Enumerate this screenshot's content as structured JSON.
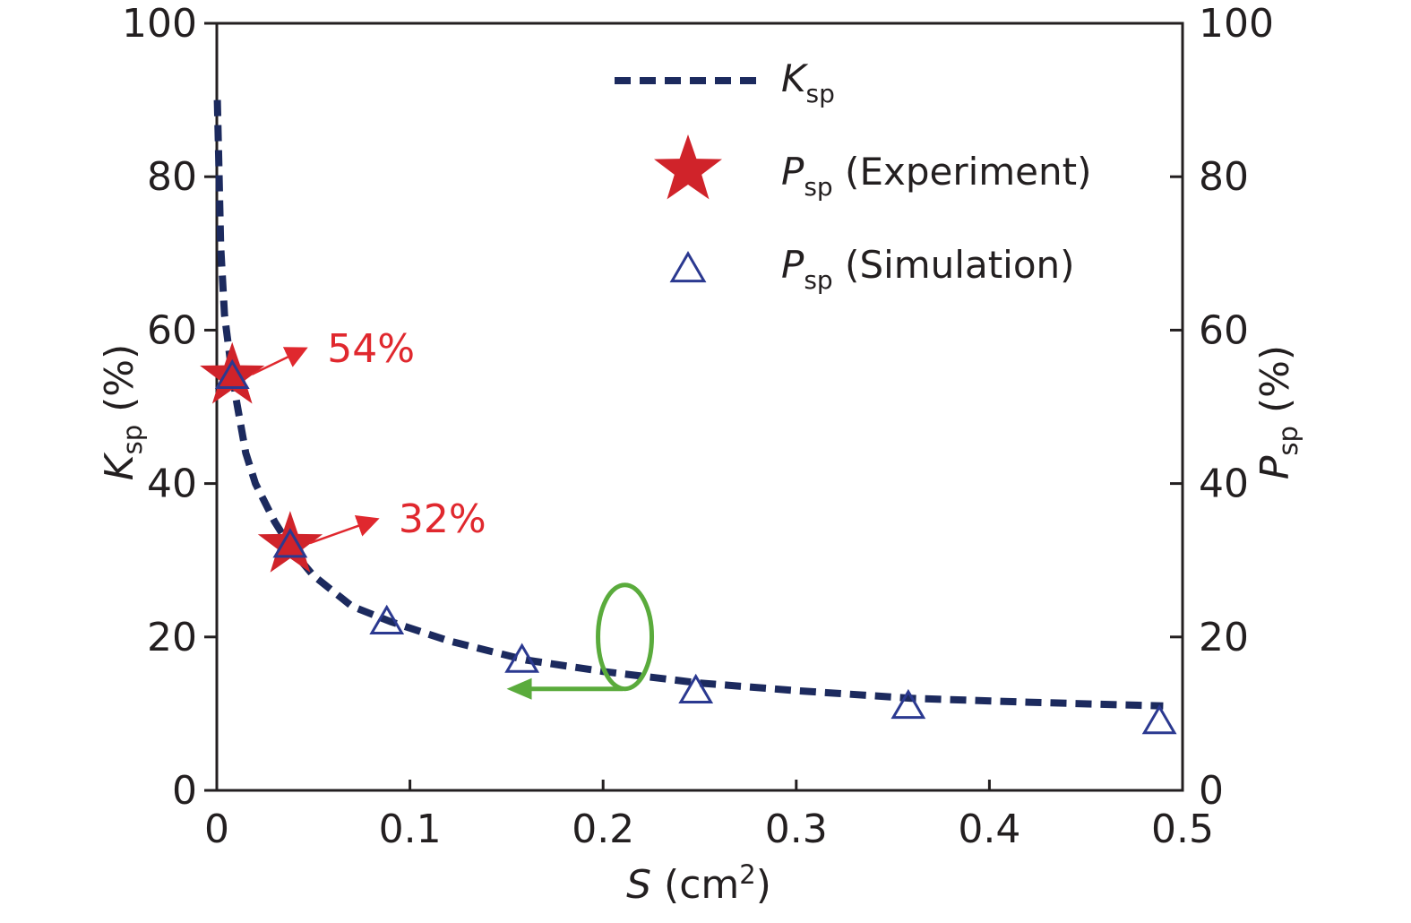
{
  "chart_data": {
    "type": "line",
    "title": "",
    "xlabel": {
      "symbol": "S",
      "unit": " (cm",
      "sup": "2",
      "close": ")"
    },
    "ylabel_left": {
      "symbol": "K",
      "sub": "sp",
      "unit": " (%)"
    },
    "ylabel_right": {
      "symbol": "P",
      "sub": "sp",
      "unit": " (%)"
    },
    "xlim": [
      0,
      0.5
    ],
    "ylim": [
      0,
      100
    ],
    "y2lim": [
      0,
      100
    ],
    "x_ticks": [
      0,
      0.1,
      0.2,
      0.3,
      0.4,
      0.5
    ],
    "x_tick_labels": [
      "0",
      "0.1",
      "0.2",
      "0.3",
      "0.4",
      "0.5"
    ],
    "y_ticks": [
      0,
      20,
      40,
      60,
      80,
      100
    ],
    "y_tick_labels": [
      "0",
      "20",
      "40",
      "60",
      "80",
      "100"
    ],
    "grid": false,
    "legend_position": "top-right",
    "series": [
      {
        "name": "K",
        "name_sub": "sp",
        "name_suffix": "",
        "style": "dashed-line",
        "color": "#1c2a5e",
        "axis": "left",
        "x": [
          0.0003,
          0.001,
          0.002,
          0.004,
          0.007,
          0.01,
          0.015,
          0.02,
          0.03,
          0.04,
          0.05,
          0.07,
          0.09,
          0.12,
          0.16,
          0.2,
          0.25,
          0.3,
          0.36,
          0.42,
          0.49
        ],
        "y": [
          90,
          82,
          71,
          62,
          56,
          51,
          44,
          40,
          35,
          31,
          28,
          24,
          22,
          19.5,
          17,
          15.5,
          14,
          13,
          12,
          11.5,
          11
        ]
      },
      {
        "name": "P",
        "name_sub": "sp",
        "name_suffix": " (Experiment)",
        "style": "star-marker",
        "color": "#d0232a",
        "axis": "right",
        "x": [
          0.008,
          0.038
        ],
        "y": [
          54,
          32
        ]
      },
      {
        "name": "P",
        "name_sub": "sp",
        "name_suffix": " (Simulation)",
        "style": "open-triangle-marker",
        "color": "#2b3990",
        "axis": "right",
        "x": [
          0.008,
          0.038,
          0.088,
          0.158,
          0.248,
          0.358,
          0.488
        ],
        "y": [
          54,
          32,
          22,
          17,
          13,
          11,
          9
        ]
      }
    ],
    "annotations": [
      {
        "text": "54%",
        "x": 0.008,
        "y": 54,
        "color": "#e0282e"
      },
      {
        "text": "32%",
        "x": 0.038,
        "y": 32,
        "color": "#e0282e"
      }
    ],
    "axis_indicator": {
      "x": 0.215,
      "y": 13,
      "points_to": "left-axis",
      "color": "#5aab3c"
    }
  }
}
